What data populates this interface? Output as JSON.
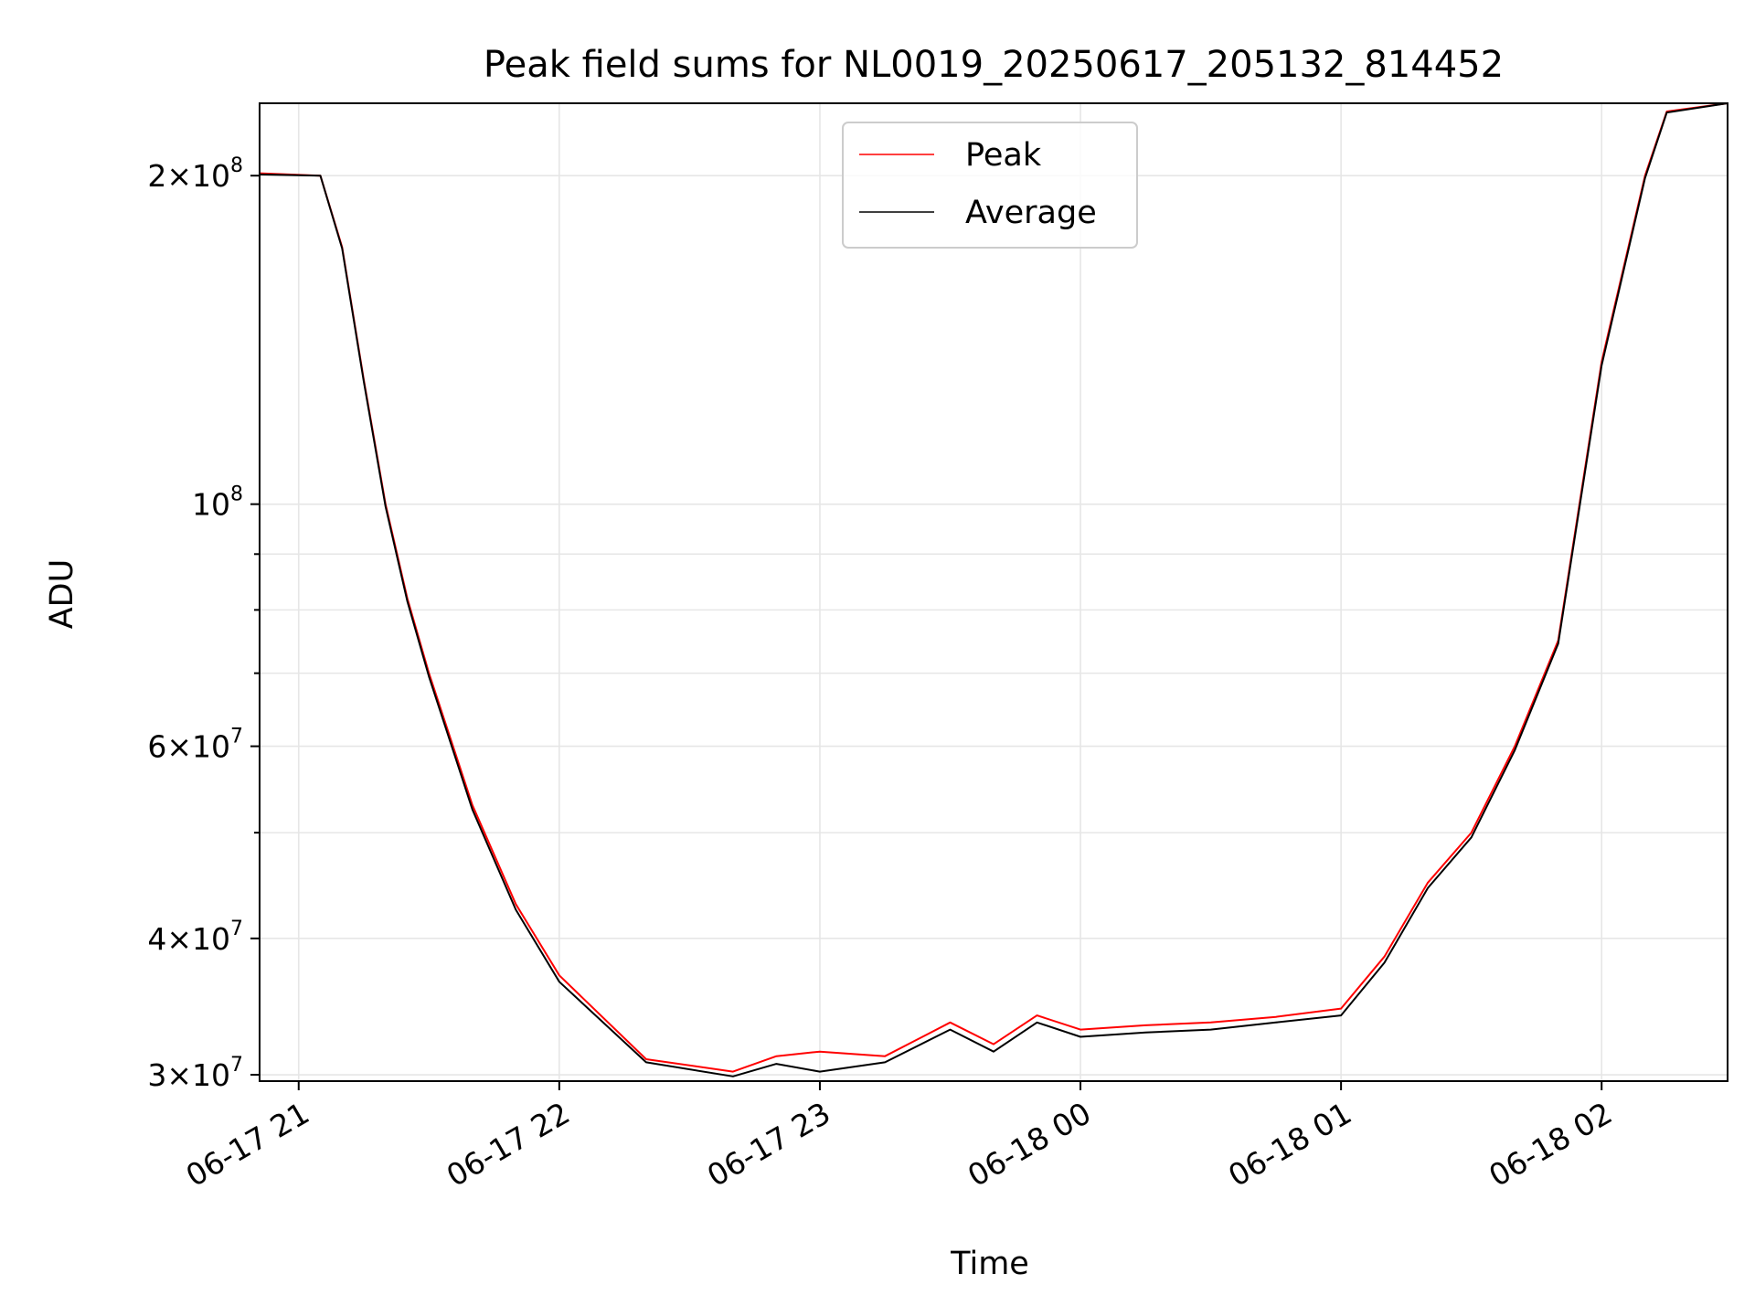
{
  "chart_data": {
    "type": "line",
    "title": "Peak field sums for NL0019_20250617_205132_814452",
    "xlabel": "Time",
    "ylabel": "ADU",
    "yscale": "log",
    "xlim": [
      "2025-06-17 20:51",
      "2025-06-18 02:29"
    ],
    "ylim": [
      29600000,
      233000000
    ],
    "grid": true,
    "legend_position": "upper center",
    "x_ticks": [
      {
        "value": "2025-06-17 21:00",
        "label": "06-17 21"
      },
      {
        "value": "2025-06-17 22:00",
        "label": "06-17 22"
      },
      {
        "value": "2025-06-17 23:00",
        "label": "06-17 23"
      },
      {
        "value": "2025-06-18 00:00",
        "label": "06-18 00"
      },
      {
        "value": "2025-06-18 01:00",
        "label": "06-18 01"
      },
      {
        "value": "2025-06-18 02:00",
        "label": "06-18 02"
      }
    ],
    "y_ticks": [
      {
        "value": 30000000,
        "mant": "3",
        "exp": "7"
      },
      {
        "value": 40000000,
        "mant": "4",
        "exp": "7"
      },
      {
        "value": 60000000,
        "mant": "6",
        "exp": "7"
      },
      {
        "value": 100000000,
        "mant": "",
        "exp": "8"
      },
      {
        "value": 200000000,
        "mant": "2",
        "exp": "8"
      }
    ],
    "y_minor_ticks": [
      50000000,
      70000000,
      80000000,
      90000000
    ],
    "series": [
      {
        "name": "Peak",
        "color": "#ff0000",
        "x": [
          "2025-06-17 20:51",
          "2025-06-17 21:05",
          "2025-06-17 21:10",
          "2025-06-17 21:15",
          "2025-06-17 21:20",
          "2025-06-17 21:25",
          "2025-06-17 21:30",
          "2025-06-17 21:40",
          "2025-06-17 21:50",
          "2025-06-17 22:00",
          "2025-06-17 22:20",
          "2025-06-17 22:40",
          "2025-06-17 22:50",
          "2025-06-17 23:00",
          "2025-06-17 23:15",
          "2025-06-17 23:30",
          "2025-06-17 23:40",
          "2025-06-17 23:50",
          "2025-06-18 00:00",
          "2025-06-18 00:15",
          "2025-06-18 00:30",
          "2025-06-18 00:45",
          "2025-06-18 01:00",
          "2025-06-18 01:10",
          "2025-06-18 01:20",
          "2025-06-18 01:30",
          "2025-06-18 01:40",
          "2025-06-18 01:50",
          "2025-06-18 02:00",
          "2025-06-18 02:10",
          "2025-06-18 02:15",
          "2025-06-18 02:29"
        ],
        "y": [
          201000000,
          200000000,
          172000000,
          130000000,
          100000000,
          82000000,
          70000000,
          53000000,
          43000000,
          37000000,
          31000000,
          30200000,
          31200000,
          31500000,
          31200000,
          33500000,
          32000000,
          34000000,
          33000000,
          33300000,
          33500000,
          33900000,
          34500000,
          38500000,
          45000000,
          50000000,
          60000000,
          75000000,
          135000000,
          200000000,
          229000000,
          233000000
        ]
      },
      {
        "name": "Average",
        "color": "#000000",
        "x": [
          "2025-06-17 20:51",
          "2025-06-17 21:05",
          "2025-06-17 21:10",
          "2025-06-17 21:15",
          "2025-06-17 21:20",
          "2025-06-17 21:25",
          "2025-06-17 21:30",
          "2025-06-17 21:40",
          "2025-06-17 21:50",
          "2025-06-17 22:00",
          "2025-06-17 22:20",
          "2025-06-17 22:40",
          "2025-06-17 22:50",
          "2025-06-17 23:00",
          "2025-06-17 23:15",
          "2025-06-17 23:30",
          "2025-06-17 23:40",
          "2025-06-17 23:50",
          "2025-06-18 00:00",
          "2025-06-18 00:15",
          "2025-06-18 00:30",
          "2025-06-18 00:45",
          "2025-06-18 01:00",
          "2025-06-18 01:10",
          "2025-06-18 01:20",
          "2025-06-18 01:30",
          "2025-06-18 01:40",
          "2025-06-18 01:50",
          "2025-06-18 02:00",
          "2025-06-18 02:10",
          "2025-06-18 02:15",
          "2025-06-18 02:29"
        ],
        "y": [
          200500000,
          200000000,
          171500000,
          129500000,
          99500000,
          81500000,
          69500000,
          52500000,
          42500000,
          36500000,
          30800000,
          29900000,
          30700000,
          30200000,
          30800000,
          33000000,
          31500000,
          33500000,
          32500000,
          32800000,
          33000000,
          33500000,
          34000000,
          38000000,
          44500000,
          49500000,
          59500000,
          74500000,
          134000000,
          199000000,
          228500000,
          233000000
        ]
      }
    ]
  }
}
